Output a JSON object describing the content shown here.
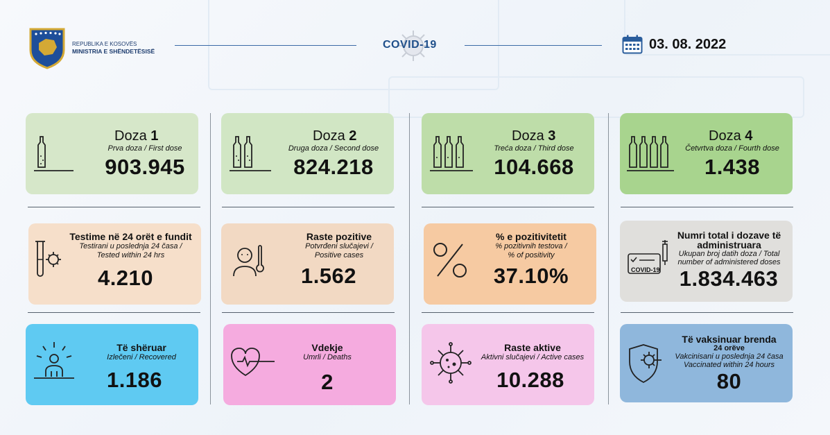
{
  "header": {
    "org_line1": "REPUBLIKA E KOSOVËS",
    "org_line2": "MINISTRIA E SHËNDETËSISË",
    "covid_label": "COVID-19",
    "date": "03. 08. 2022"
  },
  "doses": [
    {
      "name": "Doza",
      "num": "1",
      "sub": "Prva doza / First dose",
      "value": "903.945",
      "vials": 1,
      "color": "#d6e7c9"
    },
    {
      "name": "Doza",
      "num": "2",
      "sub": "Druga doza / Second dose",
      "value": "824.218",
      "vials": 2,
      "color": "#d1e6c4"
    },
    {
      "name": "Doza",
      "num": "3",
      "sub": "Treća doza / Third dose",
      "value": "104.668",
      "vials": 3,
      "color": "#bedda9"
    },
    {
      "name": "Doza",
      "num": "4",
      "sub": "Četvrtva doza / Fourth dose",
      "value": "1.438",
      "vials": 4,
      "color": "#a8d48e"
    }
  ],
  "row2": {
    "tests": {
      "title": "Testime në 24 orët e fundit",
      "sub1": "Testirani u poslednja 24 časa /",
      "sub2": "Tested within 24 hrs",
      "value": "4.210",
      "color": "#f6dfca"
    },
    "positive": {
      "title": "Raste pozitive",
      "sub1": "Potvrđeni slučajevi /",
      "sub2": "Positive cases",
      "value": "1.562",
      "color": "#f2d9c3"
    },
    "positivity": {
      "title": "% e pozitivitetit",
      "sub1": "% pozitivnih testova /",
      "sub2": "% of positivity",
      "value": "37.10%",
      "color": "#f6caa2"
    },
    "total_doses": {
      "title1": "Numri total i dozave të",
      "title2": "administruara",
      "sub1": "Ukupan broj datih doza / Total",
      "sub2": "number of administered doses",
      "value": "1.834.463",
      "icon_text": "COVID-19",
      "color": "#e0dfdc"
    }
  },
  "row3": {
    "recovered": {
      "title": "Të shëruar",
      "sub": "Izlečeni / Recovered",
      "value": "1.186",
      "color": "#5fcaf2"
    },
    "deaths": {
      "title": "Vdekje",
      "sub": "Umrli / Deaths",
      "value": "2",
      "color": "#f5abdf"
    },
    "active": {
      "title": "Raste aktive",
      "sub": "Aktivni slučajevi / Active cases",
      "value": "10.288",
      "color": "#f5c6ea"
    },
    "vaccinated": {
      "title1": "Të vaksinuar brenda",
      "title2": "24 orëve",
      "sub1": "Vakcinisani u poslednja 24 časa",
      "sub2": "Vaccinated within 24 hours",
      "value": "80",
      "color": "#8fb7dc"
    }
  }
}
